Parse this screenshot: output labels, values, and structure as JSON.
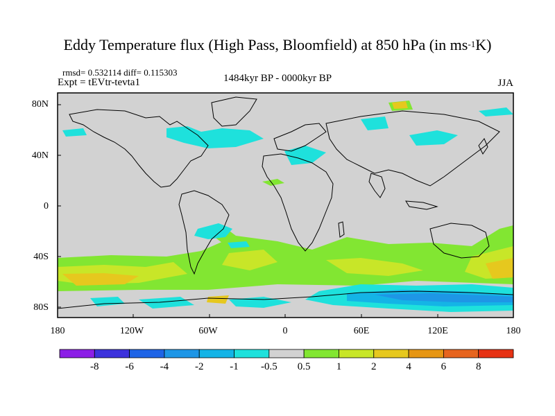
{
  "title": {
    "prefix": "Eddy Temperature flux (High Pass, Bloomfield) at 850 hPa (in ms",
    "sup": "-1",
    "suffix": "K)"
  },
  "stats": "rmsd= 0.532114 diff= 0.115303",
  "expt": "Expt = tEVtr-tevta1",
  "period": "1484kyr BP - 0000kyr BP",
  "season": "JJA",
  "lat_labels": [
    "80N",
    "40N",
    "0",
    "40S",
    "80S"
  ],
  "lon_labels": [
    "180",
    "120W",
    "60W",
    "0",
    "60E",
    "120E",
    "180"
  ],
  "colorbar": {
    "labels": [
      "-8",
      "-6",
      "-4",
      "-2",
      "-1",
      "-0.5",
      "0.5",
      "1",
      "2",
      "4",
      "6",
      "8"
    ],
    "colors": [
      "#8c1ee6",
      "#3c32dc",
      "#1e64e6",
      "#1e96e6",
      "#14b4e6",
      "#1ee1dc",
      "#d2d2d2",
      "#82e632",
      "#c8e628",
      "#e6c81e",
      "#e69614",
      "#e6641e",
      "#e63214"
    ]
  },
  "colors": {
    "land_grey": "#d2d2d2",
    "pos_light": "#82e632",
    "pos_mid": "#c8e628",
    "pos_strong": "#e6c81e",
    "neg_light": "#1ee1dc",
    "neg_mid": "#14b4e6",
    "neg_strong": "#1e96e6"
  }
}
